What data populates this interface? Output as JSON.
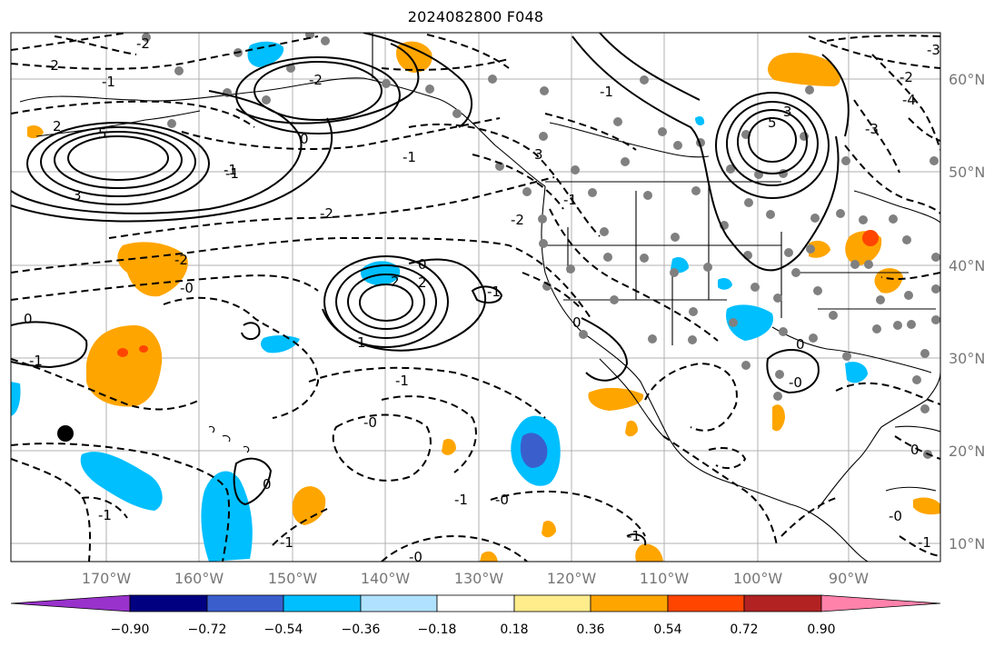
{
  "title": "2024082800 F048",
  "map": {
    "lon_labels": [
      "170°W",
      "160°W",
      "150°W",
      "140°W",
      "130°W",
      "120°W",
      "110°W",
      "100°W",
      "90°W"
    ],
    "lat_labels": [
      "60°N",
      "50°N",
      "40°N",
      "30°N",
      "20°N",
      "10°N"
    ],
    "contour_labels": [
      "-2",
      "2",
      "-1",
      "-2",
      "5",
      "3",
      "0",
      "-1",
      "-1",
      "-1",
      "3",
      "-2",
      "-2",
      "-2",
      "-1",
      "-2",
      "5",
      "3",
      "-3",
      "-2",
      "-4",
      "-3",
      "2",
      "0",
      "2",
      "-1",
      "0",
      "-1",
      "1",
      "0",
      "-1",
      "-0",
      "-1",
      "-0",
      "0",
      "-1",
      "-0",
      "-1",
      "0",
      "-1",
      "-0",
      "-1",
      "-0",
      "0",
      "-0",
      "-1"
    ],
    "colors": {
      "neg_090": "#9932cc",
      "neg_072": "#000080",
      "neg_054": "#3a5fcd",
      "neg_036": "#00bfff",
      "neg_018": "#b0e2ff",
      "neutral": "#ffffff",
      "pos_018": "#ffec8b",
      "pos_036": "#ffa500",
      "pos_054": "#ff4500",
      "pos_072": "#b22222",
      "pos_090": "#ff82ab",
      "station_dot": "#808080",
      "marker": "#000000",
      "grid": "#b0b0b0"
    }
  },
  "colorbar": {
    "tick_labels": [
      "−0.90",
      "−0.72",
      "−0.54",
      "−0.36",
      "−0.18",
      "0.18",
      "0.36",
      "0.54",
      "0.72",
      "0.90"
    ]
  }
}
